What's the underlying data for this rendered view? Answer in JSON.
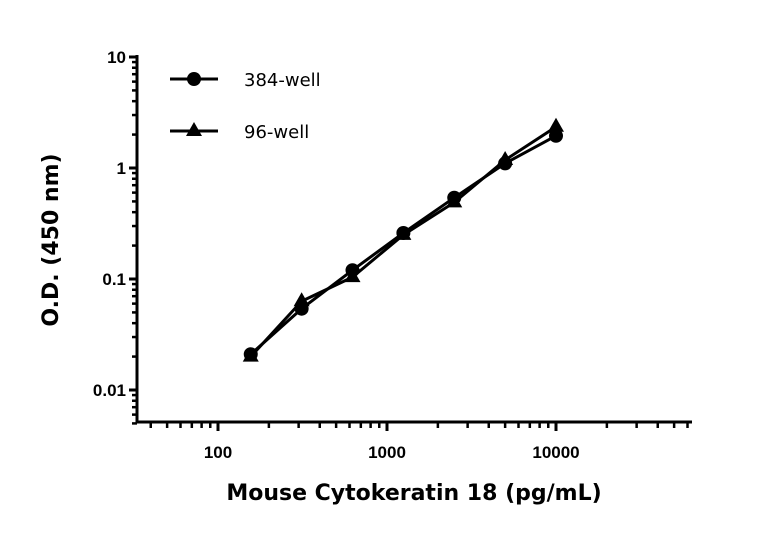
{
  "chart_data": {
    "type": "line",
    "title": "",
    "xlabel": "Mouse Cytokeratin 18 (pg/mL)",
    "ylabel": "O.D. (450 nm)",
    "xscale": "log",
    "yscale": "log",
    "xlim": [
      33,
      62000
    ],
    "ylim": [
      0.0048,
      10
    ],
    "xticks": [
      {
        "value": 100,
        "label": "100"
      },
      {
        "value": 1000,
        "label": "1000"
      },
      {
        "value": 10000,
        "label": "10000"
      }
    ],
    "yticks": [
      {
        "value": 0.01,
        "label": "0.01"
      },
      {
        "value": 0.1,
        "label": "0.1"
      },
      {
        "value": 1,
        "label": "1"
      },
      {
        "value": 10,
        "label": "10"
      }
    ],
    "grid": false,
    "legend_position": "top-left",
    "color": "#000000",
    "x": [
      156.25,
      312.5,
      625,
      1250,
      2500,
      5000,
      10000
    ],
    "series": [
      {
        "name": "384-well",
        "marker": "circle",
        "values": [
          0.021,
          0.054,
          0.12,
          0.26,
          0.54,
          1.1,
          1.95
        ]
      },
      {
        "name": "96-well",
        "marker": "triangle",
        "values": [
          0.02,
          0.063,
          0.104,
          0.25,
          0.49,
          1.18,
          2.35
        ]
      }
    ]
  }
}
